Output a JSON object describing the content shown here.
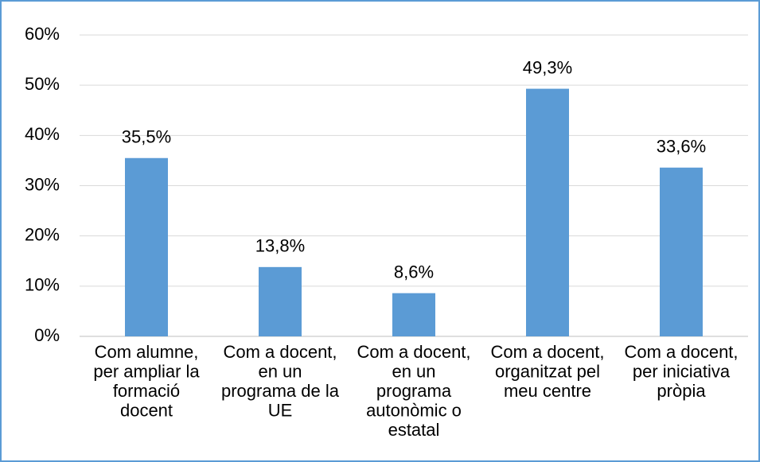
{
  "chart_data": {
    "type": "bar",
    "categories": [
      "Com alumne, per ampliar la formació docent",
      "Com a docent, en un programa de la UE",
      "Com a docent, en un programa autonòmic o estatal",
      "Com a docent, organitzat pel meu centre",
      "Com a docent, per iniciativa pròpia"
    ],
    "values": [
      35.5,
      13.8,
      8.6,
      49.3,
      33.6
    ],
    "value_labels": [
      "35,5%",
      "13,8%",
      "8,6%",
      "49,3%",
      "33,6%"
    ],
    "color": "#5b9bd5",
    "ylim": [
      0,
      60
    ],
    "yticks": [
      {
        "value": 0,
        "label": "0%"
      },
      {
        "value": 10,
        "label": "10%"
      },
      {
        "value": 20,
        "label": "20%"
      },
      {
        "value": 30,
        "label": "30%"
      },
      {
        "value": 40,
        "label": "40%"
      },
      {
        "value": 50,
        "label": "50%"
      },
      {
        "value": 60,
        "label": "60%"
      }
    ],
    "grid": true
  }
}
